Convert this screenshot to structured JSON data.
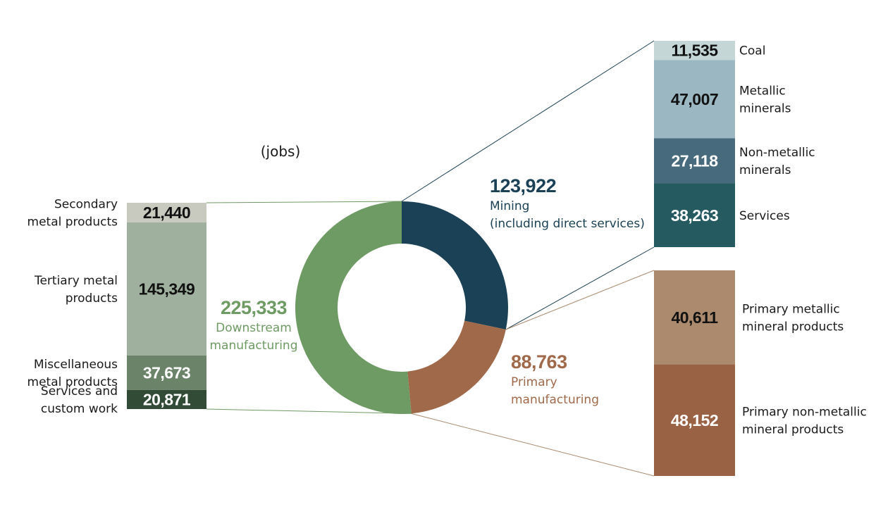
{
  "units_label": "(jobs)",
  "chart_data": {
    "type": "pie",
    "units": "(jobs)",
    "colors": {
      "mining": "#1a4155",
      "primary": "#ab8a6d",
      "downstream": "#6e9a63"
    },
    "donut": [
      {
        "key": "mining",
        "value": "123,922",
        "label_lines": [
          "Mining",
          "(including direct services)"
        ],
        "color": "#1a4155"
      },
      {
        "key": "primary",
        "value": "88,763",
        "label_lines": [
          "Primary",
          "manufacturing"
        ],
        "color": "#a0694a"
      },
      {
        "key": "downstream",
        "value": "225,333",
        "label_lines": [
          "Downstream",
          "manufacturing"
        ],
        "color": "#6e9a63"
      }
    ],
    "mining_breakdown": [
      {
        "value": "11,535",
        "label_lines": [
          "Coal"
        ],
        "color": "#c4d6d5",
        "text_color": "#111111"
      },
      {
        "value": "47,007",
        "label_lines": [
          "Metallic",
          "minerals"
        ],
        "color": "#9ab7c2",
        "text_color": "#111111"
      },
      {
        "value": "27,118",
        "label_lines": [
          "Non-metallic",
          "minerals"
        ],
        "color": "#476b7c",
        "text_color": "#ffffff"
      },
      {
        "value": "38,263",
        "label_lines": [
          "Services"
        ],
        "color": "#255b60",
        "text_color": "#ffffff"
      }
    ],
    "primary_breakdown": [
      {
        "value": "40,611",
        "label_lines": [
          "Primary metallic",
          "mineral products"
        ],
        "color": "#ab8a6d",
        "text_color": "#111111"
      },
      {
        "value": "48,152",
        "label_lines": [
          "Primary non-metallic",
          "mineral products"
        ],
        "color": "#9a6245",
        "text_color": "#ffffff"
      }
    ],
    "downstream_breakdown": [
      {
        "value": "21,440",
        "label_lines": [
          "Secondary",
          "metal products"
        ],
        "color": "#c8c9bf",
        "text_color": "#111111"
      },
      {
        "value": "145,349",
        "label_lines": [
          "Tertiary metal",
          "products"
        ],
        "color": "#9fb09e",
        "text_color": "#111111"
      },
      {
        "value": "37,673",
        "label_lines": [
          "Miscellaneous",
          "metal products"
        ],
        "color": "#6b8469",
        "text_color": "#ffffff"
      },
      {
        "value": "20,871",
        "label_lines": [
          "Services and",
          "custom work"
        ],
        "color": "#324b37",
        "text_color": "#ffffff"
      }
    ]
  }
}
